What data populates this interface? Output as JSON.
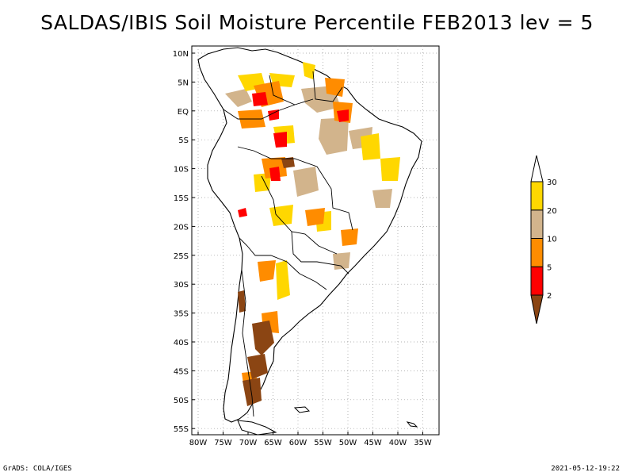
{
  "title": "SALDAS/IBIS Soil Moisture Percentile FEB2013 lev = 5",
  "map": {
    "region": "South America",
    "lat_labels": [
      "10N",
      "5N",
      "EQ",
      "5S",
      "10S",
      "15S",
      "20S",
      "25S",
      "30S",
      "35S",
      "40S",
      "45S",
      "50S",
      "55S"
    ],
    "lon_labels": [
      "80W",
      "75W",
      "70W",
      "65W",
      "60W",
      "55W",
      "50W",
      "45W",
      "40W",
      "35W"
    ]
  },
  "colorbar": {
    "levels": [
      "2",
      "5",
      "10",
      "20",
      "30"
    ],
    "colors": [
      "#8b4513",
      "#ff0000",
      "#ff8c00",
      "#d2b48c",
      "#ffd700"
    ]
  },
  "footer": {
    "left": "GrADS: COLA/IGES",
    "right": "2021-05-12-19:22"
  }
}
